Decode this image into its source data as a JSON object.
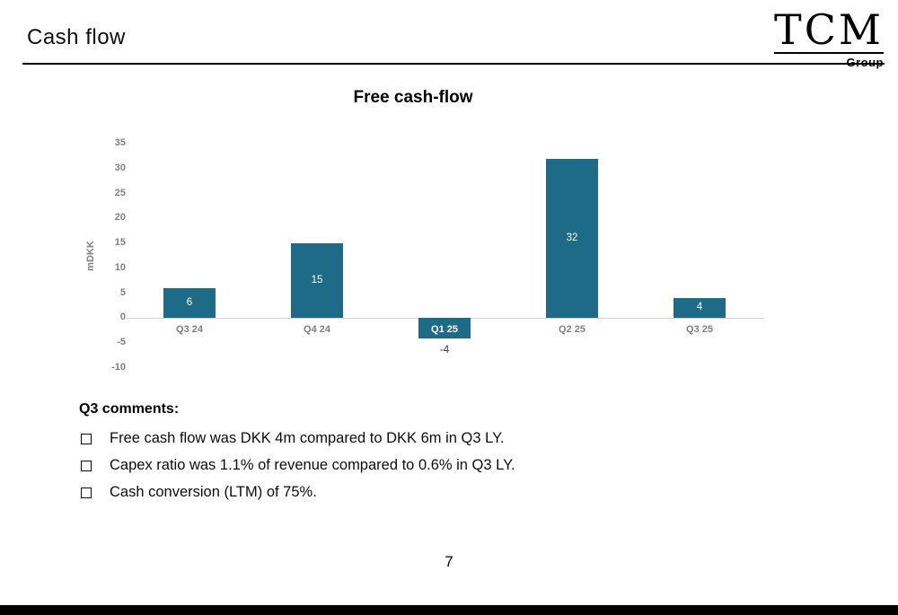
{
  "header": {
    "title": "Cash flow",
    "logo_main": "TCM",
    "logo_sub": "Group"
  },
  "chart_data": {
    "type": "bar",
    "title": "Free cash-flow",
    "categories": [
      "Q3 24",
      "Q4 24",
      "Q1 25",
      "Q2 25",
      "Q3 25"
    ],
    "values": [
      6,
      15,
      -4,
      32,
      4
    ],
    "xlabel": "",
    "ylabel": "mDKK",
    "ylim": [
      -10,
      35
    ],
    "yticks": [
      35,
      30,
      25,
      20,
      15,
      10,
      5,
      0,
      -5,
      -10
    ],
    "bar_color": "#1e6b87",
    "grid": false,
    "legend": "none",
    "value_label_color_positive": "#ffffff",
    "value_label_color_negative": "#333333",
    "axis_label_color": "#7f7f7f"
  },
  "comments": {
    "heading": "Q3 comments:",
    "items": [
      "Free cash flow was DKK 4m compared to DKK 6m in Q3 LY.",
      "Capex ratio was 1.1% of revenue compared to 0.6% in Q3 LY.",
      "Cash conversion (LTM) of 75%."
    ]
  },
  "footer": {
    "page_number": "7"
  }
}
